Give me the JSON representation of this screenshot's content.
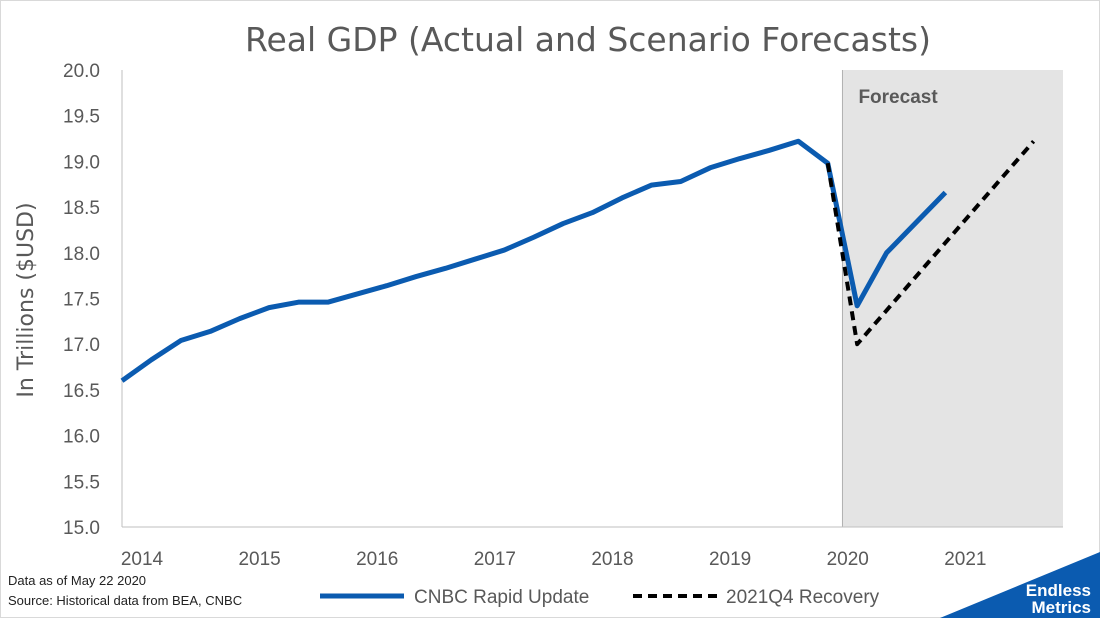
{
  "chart_data": {
    "type": "line",
    "title": "Real GDP (Actual and Scenario Forecasts)",
    "xlabel": "",
    "ylabel": "In Trillions ($USD)",
    "xlim": [
      2014,
      2022
    ],
    "ylim": [
      15.0,
      20.0
    ],
    "y_ticks": [
      "15.0",
      "15.5",
      "16.0",
      "16.5",
      "17.0",
      "17.5",
      "18.0",
      "18.5",
      "19.0",
      "19.5",
      "20.0"
    ],
    "x_ticks": [
      "2014",
      "2015",
      "2016",
      "2017",
      "2018",
      "2019",
      "2020",
      "2021"
    ],
    "grid": false,
    "legend": "bottom",
    "forecast_region": {
      "label": "Forecast",
      "start": 2020.125,
      "end": 2022,
      "color": "#e4e4e4"
    },
    "series": [
      {
        "name": "CNBC Rapid Update",
        "color": "#0b5bb0",
        "style": "solid",
        "x": [
          2014.0,
          2014.25,
          2014.5,
          2014.75,
          2015.0,
          2015.25,
          2015.5,
          2015.75,
          2016.0,
          2016.25,
          2016.5,
          2016.75,
          2017.0,
          2017.25,
          2017.5,
          2017.75,
          2018.0,
          2018.25,
          2018.5,
          2018.75,
          2019.0,
          2019.25,
          2019.5,
          2019.75,
          2020.0,
          2020.25,
          2020.5,
          2020.75,
          2021.0
        ],
        "values": [
          16.6,
          16.83,
          17.04,
          17.14,
          17.28,
          17.4,
          17.46,
          17.46,
          17.55,
          17.64,
          17.74,
          17.83,
          17.93,
          18.03,
          18.17,
          18.32,
          18.44,
          18.6,
          18.74,
          18.78,
          18.93,
          19.03,
          19.12,
          19.22,
          18.98,
          17.42,
          18.0,
          18.33,
          18.66
        ]
      },
      {
        "name": "2021Q4 Recovery",
        "color": "#000000",
        "style": "dashed",
        "x": [
          2020.0,
          2020.25,
          2021.75
        ],
        "values": [
          18.98,
          17.0,
          19.22
        ]
      }
    ]
  },
  "notes": {
    "date_line": "Data as of May 22 2020",
    "source_line": "Source: Historical data from BEA, CNBC"
  },
  "logo": {
    "line1": "Endless",
    "line2": "Metrics",
    "color": "#0b5bb0"
  }
}
